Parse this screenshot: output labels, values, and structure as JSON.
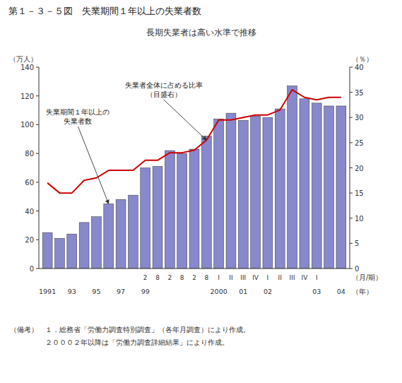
{
  "chart_data": {
    "type": "bar",
    "title": "第１－３－５図　失業期間１年以上の失業者数",
    "subtitle": "長期失業者は高い水準で推移",
    "ylabel": "（万人）",
    "y2label": "（％）",
    "xlabel": "（月/期）",
    "x2label": "（年）",
    "categories": [
      null,
      null,
      null,
      null,
      null,
      null,
      null,
      null,
      "2",
      "8",
      "2",
      "8",
      "2",
      "8",
      "I",
      "II",
      "III",
      "IV",
      "I",
      "II",
      "III",
      "IV",
      "I",
      null,
      null
    ],
    "category_years": [
      "1991",
      null,
      "93",
      null,
      "95",
      null,
      "97",
      null,
      "99",
      null,
      null,
      null,
      null,
      null,
      "2000",
      null,
      "01",
      null,
      "02",
      null,
      null,
      null,
      "03",
      null,
      "04"
    ],
    "series": [
      {
        "type": "bar",
        "color": "#8888cc",
        "values": [
          25,
          21,
          24,
          32,
          36,
          45,
          48,
          51,
          70,
          71,
          82,
          80,
          83,
          92,
          104,
          108,
          103,
          106,
          105,
          111,
          127,
          118,
          115,
          113,
          113
        ]
      },
      {
        "type": "line",
        "axis": "y2",
        "color": "#cc0000",
        "values": [
          17.0,
          15.0,
          15.0,
          17.5,
          18.0,
          19.5,
          19.5,
          19.5,
          21.5,
          21.5,
          23.0,
          23.0,
          23.5,
          25.5,
          29.5,
          29.5,
          30.0,
          30.5,
          30.5,
          31.5,
          35.5,
          34.0,
          33.5,
          34.0,
          34.0
        ]
      }
    ],
    "ylim": [
      0,
      140
    ],
    "yticks": [
      0,
      20,
      40,
      60,
      80,
      100,
      120,
      140
    ],
    "y2lim": [
      0,
      40
    ],
    "y2ticks": [
      0,
      5,
      10,
      15,
      20,
      25,
      30,
      35,
      40
    ],
    "grid": false,
    "annotations": [
      {
        "text": "失業者全体に占める比率\n（目盛右）",
        "series": 1
      },
      {
        "text": "失業期間１年以上の\n失業者数",
        "series": 0
      }
    ],
    "notes": [
      "（備考）　１．総務省「労働力調査特別調査」（各年月調査）により作成。",
      "　　　　　２０００２年以降は「労働力調査詳細結果」により作成。"
    ]
  }
}
